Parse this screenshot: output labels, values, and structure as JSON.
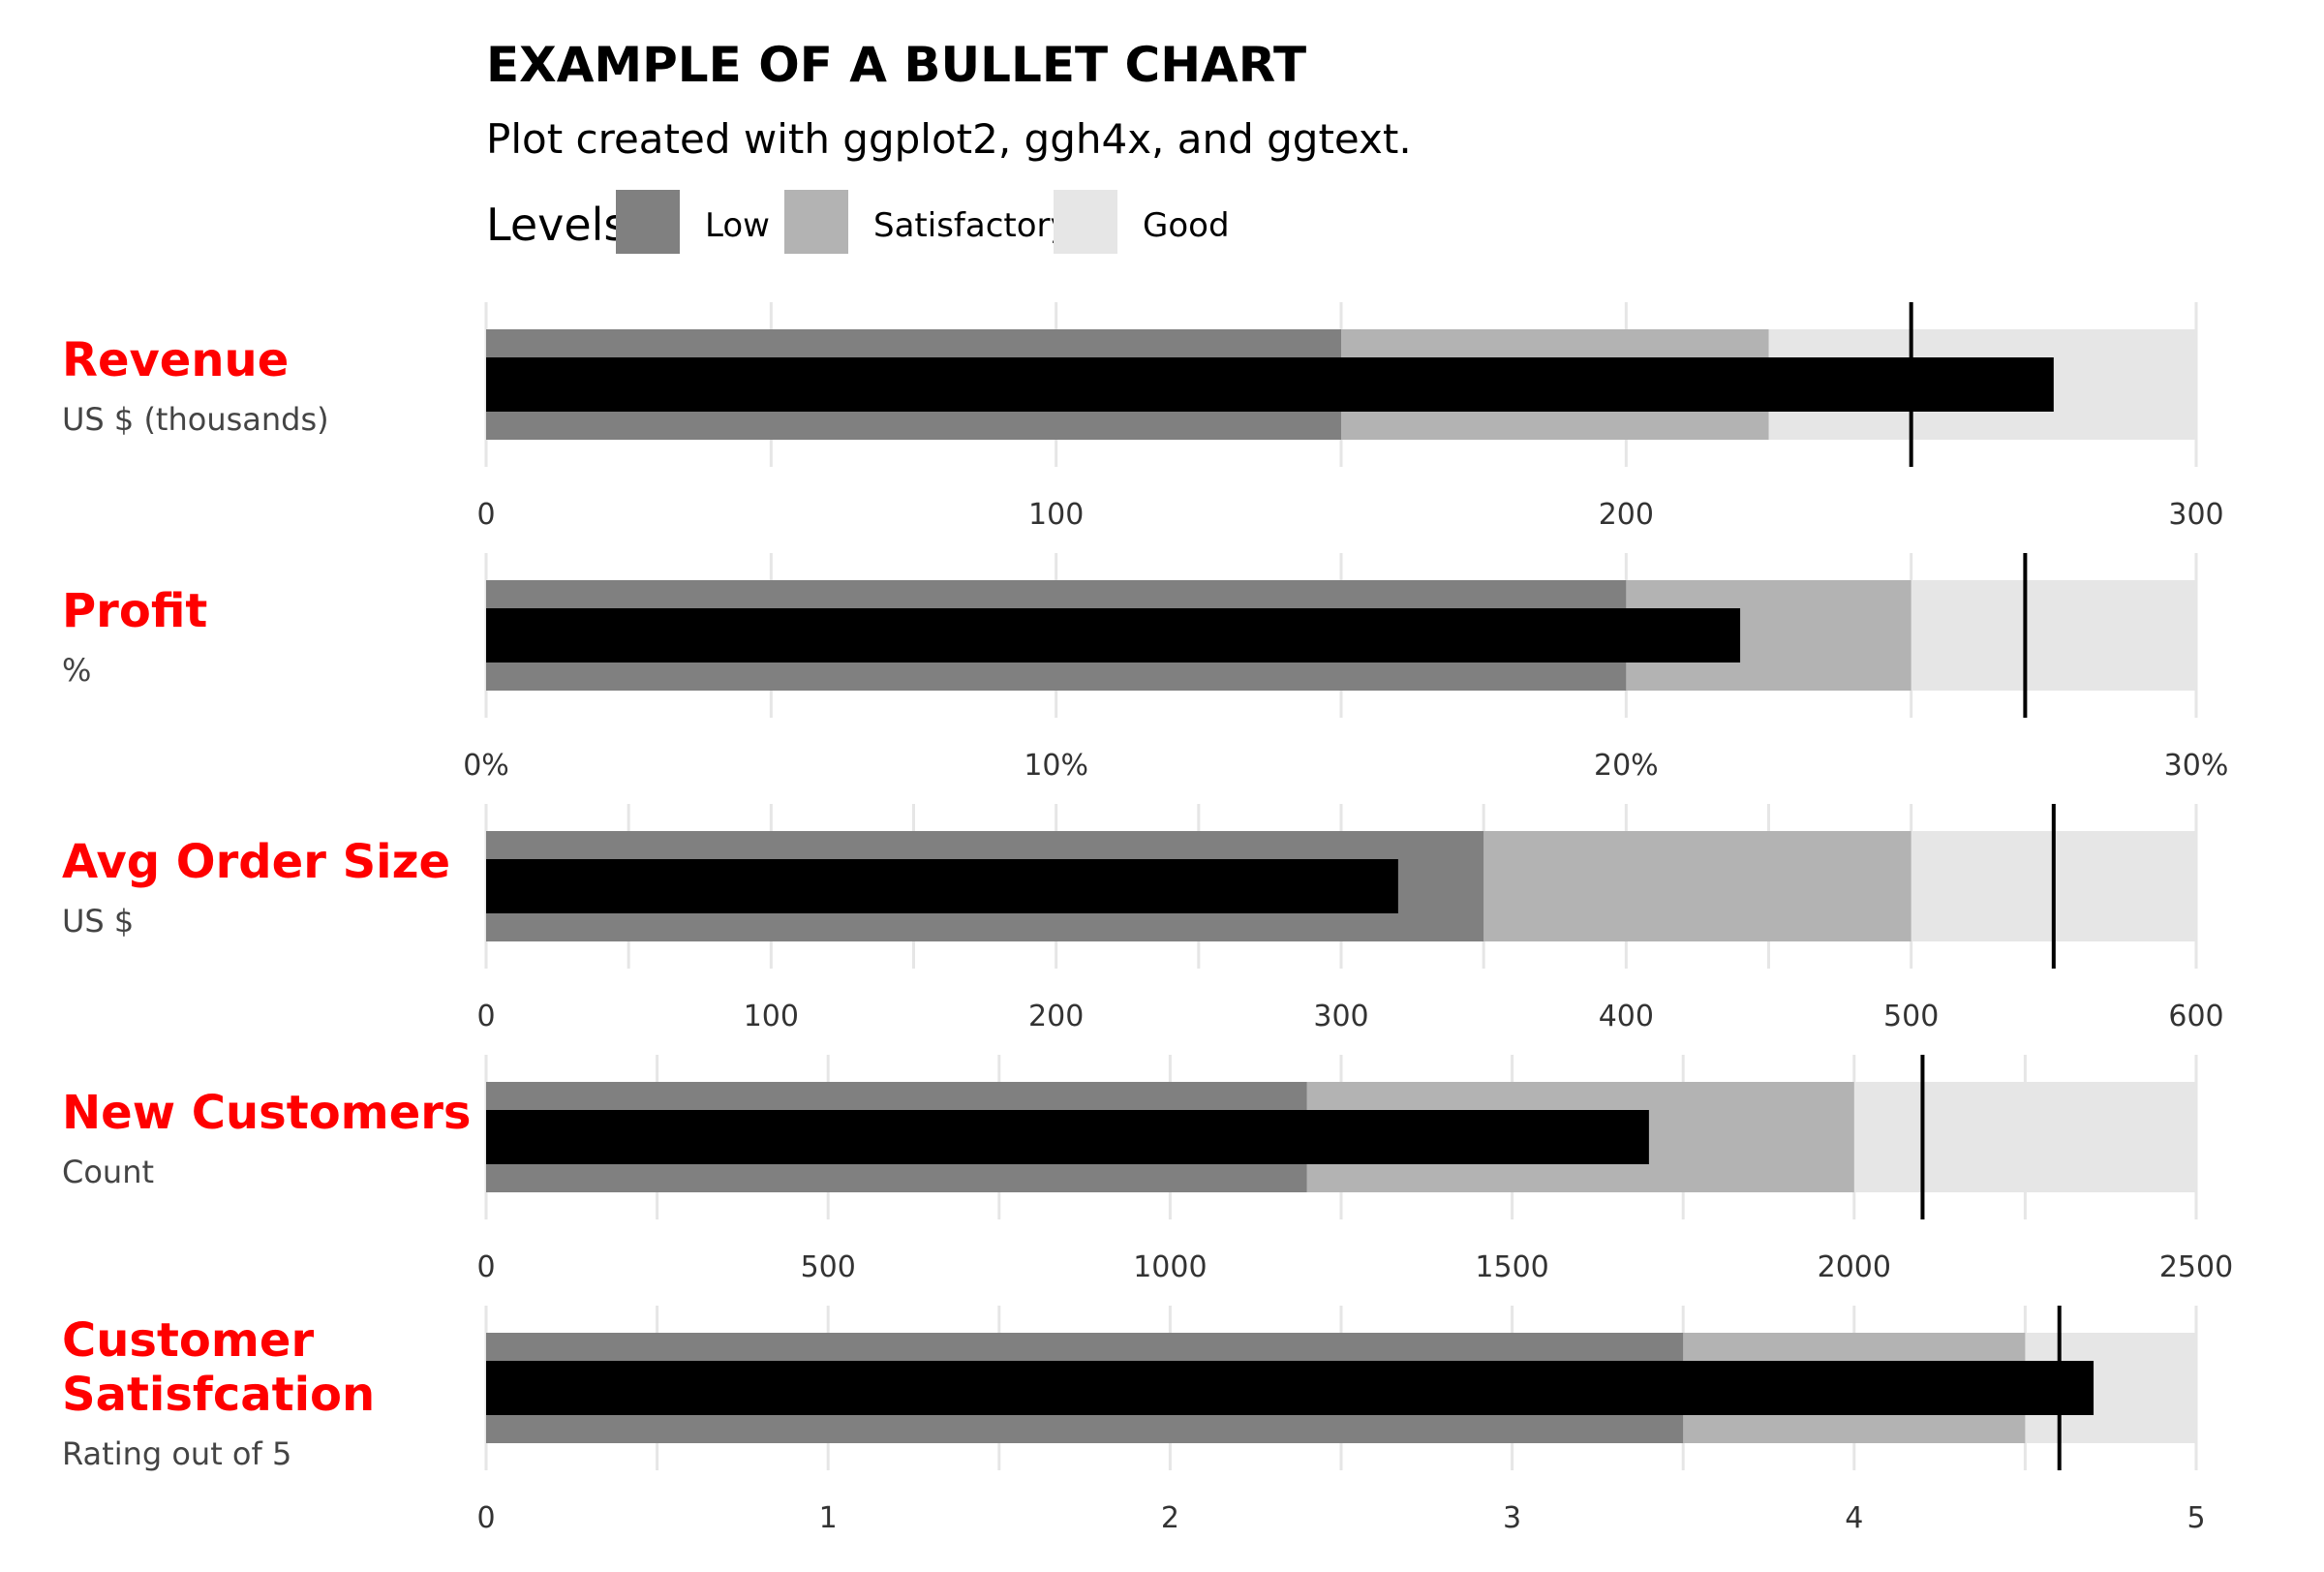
{
  "title": "EXAMPLE OF A BULLET CHART",
  "subtitle": "Plot created with ggplot2, ggh4x, and ggtext.",
  "legend": {
    "title": "Levels",
    "items": [
      {
        "label": "Low",
        "color": "#808080"
      },
      {
        "label": "Satisfactory",
        "color": "#b3b3b3"
      },
      {
        "label": "Good",
        "color": "#e6e6e6"
      }
    ]
  },
  "colors": {
    "low": "#808080",
    "satisfactory": "#b3b3b3",
    "good": "#e6e6e6",
    "value_bar": "#000000",
    "target": "#000000",
    "metric_name": "#ff0000",
    "metric_unit": "#444444"
  },
  "chart_data": {
    "type": "bullet",
    "legend_placement": "top",
    "grid": true,
    "metrics": [
      {
        "name_lines": [
          "Revenue"
        ],
        "unit": "US $ (thousands)",
        "xlim": [
          0,
          300
        ],
        "ticks": [
          0,
          100,
          200,
          300
        ],
        "tick_labels": [
          "0",
          "100",
          "200",
          "300"
        ],
        "minor_ticks": [
          50,
          150,
          250
        ],
        "ranges": {
          "low": 150,
          "satisfactory": 225,
          "good": 300
        },
        "value": 275,
        "target": 250
      },
      {
        "name_lines": [
          "Profit"
        ],
        "unit": "%",
        "xlim": [
          0,
          30
        ],
        "ticks": [
          0,
          10,
          20,
          30
        ],
        "tick_labels": [
          "0%",
          "10%",
          "20%",
          "30%"
        ],
        "minor_ticks": [
          5,
          15,
          25
        ],
        "ranges": {
          "low": 20,
          "satisfactory": 25,
          "good": 30
        },
        "value": 22,
        "target": 27
      },
      {
        "name_lines": [
          "Avg Order Size"
        ],
        "unit": "US $",
        "xlim": [
          0,
          600
        ],
        "ticks": [
          0,
          100,
          200,
          300,
          400,
          500,
          600
        ],
        "tick_labels": [
          "0",
          "100",
          "200",
          "300",
          "400",
          "500",
          "600"
        ],
        "minor_ticks": [
          50,
          150,
          250,
          350,
          450,
          550
        ],
        "ranges": {
          "low": 350,
          "satisfactory": 500,
          "good": 600
        },
        "value": 320,
        "target": 550
      },
      {
        "name_lines": [
          "New Customers"
        ],
        "unit": "Count",
        "xlim": [
          0,
          2500
        ],
        "ticks": [
          0,
          500,
          1000,
          1500,
          2000,
          2500
        ],
        "tick_labels": [
          "0",
          "500",
          "1000",
          "1500",
          "2000",
          "2500"
        ],
        "minor_ticks": [
          250,
          750,
          1250,
          1750,
          2250
        ],
        "ranges": {
          "low": 1200,
          "satisfactory": 2000,
          "good": 2500
        },
        "value": 1700,
        "target": 2100
      },
      {
        "name_lines": [
          "Customer",
          "Satisfcation"
        ],
        "unit": "Rating out of 5",
        "xlim": [
          0,
          5
        ],
        "ticks": [
          0,
          1,
          2,
          3,
          4,
          5
        ],
        "tick_labels": [
          "0",
          "1",
          "2",
          "3",
          "4",
          "5"
        ],
        "minor_ticks": [
          0.5,
          1.5,
          2.5,
          3.5,
          4.5
        ],
        "ranges": {
          "low": 3.5,
          "satisfactory": 4.5,
          "good": 5
        },
        "value": 4.7,
        "target": 4.6
      }
    ]
  }
}
